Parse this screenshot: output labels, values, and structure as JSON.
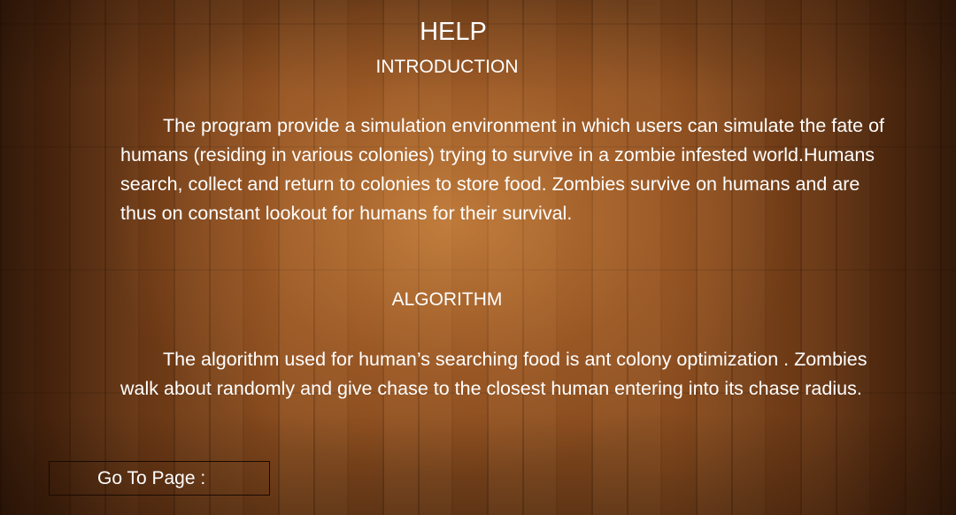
{
  "help": {
    "title": "HELP",
    "introduction": {
      "heading": "INTRODUCTION",
      "text": "The program provide a simulation environment in which users can simulate the fate of humans (residing in various colonies) trying to survive in a zombie infested world.Humans search, collect and return to colonies to store food. Zombies survive on humans and are thus on constant lookout for humans for their survival."
    },
    "algorithm": {
      "heading": "ALGORITHM",
      "text": "The algorithm used for human’s searching food is ant colony optimization . Zombies walk about randomly and give chase to the closest human entering into its chase radius."
    }
  },
  "navigation": {
    "goto_label": "Go To Page :"
  }
}
